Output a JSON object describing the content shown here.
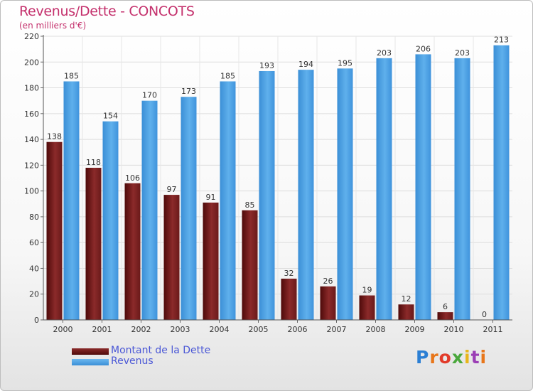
{
  "chart_data": {
    "type": "bar",
    "title": "Revenus/Dette - CONCOTS",
    "subtitle": "(en milliers d'€)",
    "categories": [
      "2000",
      "2001",
      "2002",
      "2003",
      "2004",
      "2005",
      "2006",
      "2007",
      "2008",
      "2009",
      "2010",
      "2011"
    ],
    "series": [
      {
        "name": "Montant de la Dette",
        "color": "#7a1c1c",
        "values": [
          138,
          118,
          106,
          97,
          91,
          85,
          32,
          26,
          19,
          12,
          6,
          0
        ]
      },
      {
        "name": "Revenus",
        "color": "#4a9fe0",
        "values": [
          185,
          154,
          170,
          173,
          185,
          193,
          194,
          195,
          203,
          206,
          203,
          213
        ]
      }
    ],
    "ylim": [
      0,
      220
    ],
    "yticks": [
      0,
      20,
      40,
      60,
      80,
      100,
      120,
      140,
      160,
      180,
      200,
      220
    ],
    "grid": true,
    "legend_position": "bottom-left"
  },
  "logo": {
    "letters": [
      "P",
      "r",
      "o",
      "x",
      "i",
      "t",
      "i"
    ],
    "colors": [
      "#2b7fd4",
      "#e8761a",
      "#e23b2a",
      "#4aa83c",
      "#e8b61a",
      "#9b3fb5",
      "#e8761a"
    ]
  }
}
